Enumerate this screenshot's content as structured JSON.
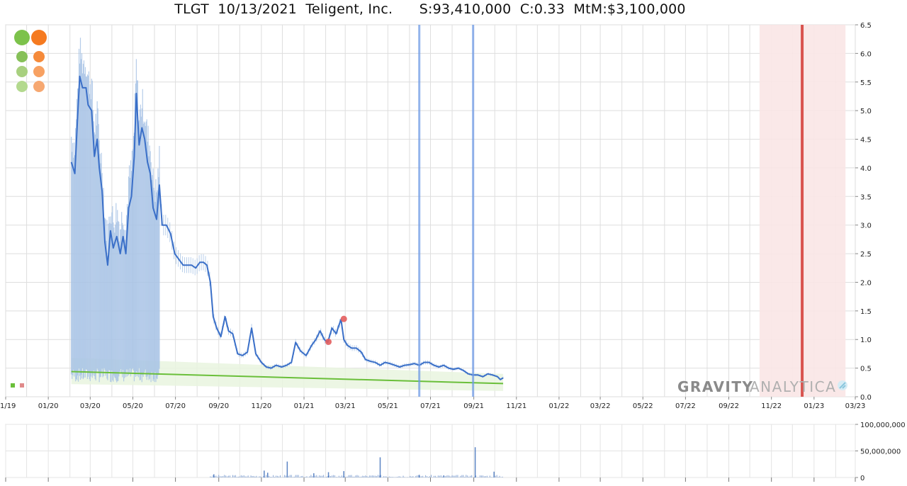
{
  "header": {
    "title": "TLGT  10/13/2021  Teligent, Inc.      S:93,410,000  C:0.33  MtM:$3,100,000"
  },
  "brand": {
    "part1": "GRAVITY",
    "part2": "ANALYTICA"
  },
  "colors": {
    "price_line": "#3a6fc8",
    "range_bars": "#a9c4e6",
    "trend_line": "#6abf3a",
    "trend_band": "#e9f4df",
    "marker_line": "#6f9be6",
    "event_line": "#d9534f",
    "event_band": "#f9e5e5",
    "dots": "#e35d5d",
    "volume": "#5b84c4",
    "green": "#7cc24b",
    "orange": "#f57a20"
  },
  "controls": {
    "zoom_in_green": "zoom-in-green",
    "zoom_in_orange": "zoom-in-orange"
  },
  "chart_data": [
    {
      "type": "line",
      "title": "TLGT  10/13/2021  Teligent, Inc.      S:93,410,000  C:0.33  MtM:$3,100,000",
      "x_tick_labels": [
        "11/19",
        "01/20",
        "03/20",
        "05/20",
        "07/20",
        "09/20",
        "11/20",
        "01/21",
        "03/21",
        "05/21",
        "07/21",
        "09/21",
        "11/21",
        "01/22",
        "03/22",
        "05/22",
        "07/22",
        "09/22",
        "11/22",
        "01/23",
        "03/23"
      ],
      "xlim": [
        "2019-11-01",
        "2023-03-01"
      ],
      "ylim": [
        0,
        6.5
      ],
      "y_ticks": [
        0.0,
        0.5,
        1.0,
        1.5,
        2.0,
        2.5,
        3.0,
        3.5,
        4.0,
        4.5,
        5.0,
        5.5,
        6.0,
        6.5
      ],
      "y_tick_labels": [
        "0.0",
        "0.5",
        "1.0",
        "1.5",
        "2.0",
        "2.5",
        "3.0",
        "3.5",
        "4.0",
        "4.5",
        "5.0",
        "5.5",
        "6.0",
        "6.5"
      ],
      "grid": true,
      "series": [
        {
          "kind": "price",
          "points": [
            [
              "2020-02-03",
              4.1
            ],
            [
              "2020-02-08",
              3.9
            ],
            [
              "2020-02-12",
              4.9
            ],
            [
              "2020-02-15",
              5.6
            ],
            [
              "2020-02-19",
              5.4
            ],
            [
              "2020-02-24",
              5.4
            ],
            [
              "2020-02-27",
              5.1
            ],
            [
              "2020-03-03",
              5.0
            ],
            [
              "2020-03-07",
              4.2
            ],
            [
              "2020-03-11",
              4.5
            ],
            [
              "2020-03-14",
              4.0
            ],
            [
              "2020-03-18",
              3.6
            ],
            [
              "2020-03-22",
              2.7
            ],
            [
              "2020-03-26",
              2.3
            ],
            [
              "2020-03-30",
              2.9
            ],
            [
              "2020-04-03",
              2.6
            ],
            [
              "2020-04-08",
              2.8
            ],
            [
              "2020-04-13",
              2.5
            ],
            [
              "2020-04-17",
              2.8
            ],
            [
              "2020-04-21",
              2.5
            ],
            [
              "2020-04-25",
              3.3
            ],
            [
              "2020-04-29",
              3.5
            ],
            [
              "2020-05-03",
              4.2
            ],
            [
              "2020-05-06",
              5.3
            ],
            [
              "2020-05-10",
              4.4
            ],
            [
              "2020-05-14",
              4.7
            ],
            [
              "2020-05-18",
              4.5
            ],
            [
              "2020-05-22",
              4.1
            ],
            [
              "2020-05-26",
              3.9
            ],
            [
              "2020-05-30",
              3.3
            ],
            [
              "2020-06-04",
              3.1
            ],
            [
              "2020-06-08",
              3.7
            ],
            [
              "2020-06-12",
              3.0
            ],
            [
              "2020-06-18",
              3.0
            ],
            [
              "2020-06-24",
              2.85
            ],
            [
              "2020-06-30",
              2.5
            ],
            [
              "2020-07-06",
              2.4
            ],
            [
              "2020-07-12",
              2.3
            ],
            [
              "2020-07-18",
              2.3
            ],
            [
              "2020-07-24",
              2.3
            ],
            [
              "2020-07-30",
              2.25
            ],
            [
              "2020-08-05",
              2.35
            ],
            [
              "2020-08-10",
              2.35
            ],
            [
              "2020-08-15",
              2.3
            ],
            [
              "2020-08-20",
              2.0
            ],
            [
              "2020-08-24",
              1.4
            ],
            [
              "2020-08-29",
              1.2
            ],
            [
              "2020-09-04",
              1.05
            ],
            [
              "2020-09-10",
              1.4
            ],
            [
              "2020-09-15",
              1.15
            ],
            [
              "2020-09-21",
              1.1
            ],
            [
              "2020-09-28",
              0.75
            ],
            [
              "2020-10-05",
              0.72
            ],
            [
              "2020-10-12",
              0.78
            ],
            [
              "2020-10-18",
              1.2
            ],
            [
              "2020-10-24",
              0.75
            ],
            [
              "2020-11-01",
              0.6
            ],
            [
              "2020-11-08",
              0.52
            ],
            [
              "2020-11-15",
              0.5
            ],
            [
              "2020-11-22",
              0.55
            ],
            [
              "2020-11-30",
              0.52
            ],
            [
              "2020-12-07",
              0.55
            ],
            [
              "2020-12-14",
              0.6
            ],
            [
              "2020-12-20",
              0.95
            ],
            [
              "2020-12-27",
              0.8
            ],
            [
              "2021-01-04",
              0.72
            ],
            [
              "2021-01-12",
              0.9
            ],
            [
              "2021-01-18",
              1.0
            ],
            [
              "2021-01-24",
              1.15
            ],
            [
              "2021-01-30",
              1.0
            ],
            [
              "2021-02-04",
              0.95
            ],
            [
              "2021-02-10",
              1.2
            ],
            [
              "2021-02-16",
              1.1
            ],
            [
              "2021-02-20",
              1.25
            ],
            [
              "2021-02-23",
              1.35
            ],
            [
              "2021-02-27",
              1.0
            ],
            [
              "2021-03-04",
              0.9
            ],
            [
              "2021-03-10",
              0.85
            ],
            [
              "2021-03-17",
              0.85
            ],
            [
              "2021-03-24",
              0.78
            ],
            [
              "2021-03-30",
              0.65
            ],
            [
              "2021-04-06",
              0.62
            ],
            [
              "2021-04-13",
              0.6
            ],
            [
              "2021-04-20",
              0.55
            ],
            [
              "2021-04-27",
              0.6
            ],
            [
              "2021-05-04",
              0.58
            ],
            [
              "2021-05-11",
              0.55
            ],
            [
              "2021-05-18",
              0.52
            ],
            [
              "2021-05-25",
              0.55
            ],
            [
              "2021-06-01",
              0.56
            ],
            [
              "2021-06-08",
              0.58
            ],
            [
              "2021-06-15",
              0.55
            ],
            [
              "2021-06-22",
              0.6
            ],
            [
              "2021-06-29",
              0.6
            ],
            [
              "2021-07-06",
              0.55
            ],
            [
              "2021-07-13",
              0.52
            ],
            [
              "2021-07-20",
              0.55
            ],
            [
              "2021-07-27",
              0.5
            ],
            [
              "2021-08-03",
              0.48
            ],
            [
              "2021-08-10",
              0.5
            ],
            [
              "2021-08-17",
              0.46
            ],
            [
              "2021-08-24",
              0.4
            ],
            [
              "2021-08-31",
              0.38
            ],
            [
              "2021-09-07",
              0.38
            ],
            [
              "2021-09-14",
              0.35
            ],
            [
              "2021-09-21",
              0.4
            ],
            [
              "2021-09-28",
              0.38
            ],
            [
              "2021-10-05",
              0.35
            ],
            [
              "2021-10-09",
              0.3
            ],
            [
              "2021-10-13",
              0.33
            ]
          ]
        },
        {
          "kind": "trend",
          "points": [
            [
              "2020-02-03",
              0.44
            ],
            [
              "2021-10-13",
              0.23
            ]
          ],
          "band_upper": [
            [
              "2020-02-03",
              0.68
            ],
            [
              "2021-10-13",
              0.4
            ]
          ],
          "band_lower": [
            [
              "2020-02-03",
              0.22
            ],
            [
              "2021-10-13",
              0.1
            ]
          ]
        },
        {
          "kind": "markers",
          "points": [
            [
              "2021-02-05",
              0.96
            ],
            [
              "2021-02-27",
              1.36
            ]
          ]
        }
      ],
      "vertical_markers": [
        "2021-06-15",
        "2021-08-31"
      ],
      "event_band": [
        "2022-10-15",
        "2023-02-15"
      ],
      "event_line": "2022-12-15"
    },
    {
      "type": "bar",
      "title": "",
      "ylim": [
        0,
        100000000
      ],
      "y_tick_labels": [
        "100,000,000",
        "50,000,000",
        "0"
      ],
      "grid": true,
      "spikes": [
        [
          "2020-08-25",
          6000000
        ],
        [
          "2020-11-05",
          13000000
        ],
        [
          "2020-11-10",
          9000000
        ],
        [
          "2020-12-08",
          30000000
        ],
        [
          "2021-01-15",
          8000000
        ],
        [
          "2021-02-05",
          10000000
        ],
        [
          "2021-02-27",
          12000000
        ],
        [
          "2021-04-20",
          38000000
        ],
        [
          "2021-06-15",
          5000000
        ],
        [
          "2021-07-20",
          4000000
        ],
        [
          "2021-09-03",
          57000000
        ],
        [
          "2021-09-30",
          11000000
        ]
      ]
    }
  ]
}
